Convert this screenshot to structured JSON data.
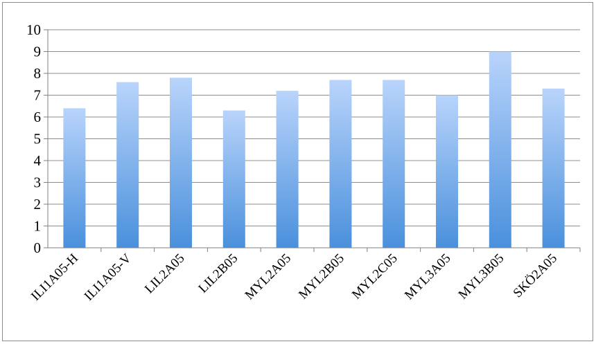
{
  "chart_data": {
    "type": "bar",
    "title": "",
    "xlabel": "",
    "ylabel": "",
    "categories": [
      "ILI1A05-H",
      "ILI1A05-V",
      "LIL2A05",
      "LIL2B05",
      "MYL2A05",
      "MYL2B05",
      "MYL2C05",
      "MYL3A05",
      "MYL3B05",
      "SKÖ2A05"
    ],
    "values": [
      6.4,
      7.6,
      7.8,
      6.3,
      7.2,
      7.7,
      7.7,
      7.0,
      9.0,
      7.3
    ],
    "ylim": [
      0,
      10
    ],
    "yticks": [
      0,
      1,
      2,
      3,
      4,
      5,
      6,
      7,
      8,
      9,
      10
    ],
    "grid": true,
    "legend": "none",
    "colors": {
      "bar_top": "#b9d4fb",
      "bar_bottom": "#4a90dc",
      "grid": "#8c8c8c",
      "axis": "#7f7f7f"
    }
  }
}
